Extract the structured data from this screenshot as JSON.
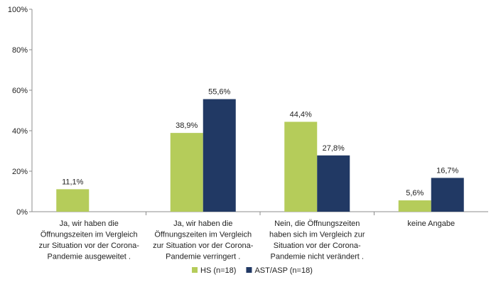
{
  "chart_data": {
    "type": "bar",
    "categories": [
      [
        "Ja, wir haben die",
        "Öffnungszeiten im Vergleich",
        "zur Situation vor der Corona-",
        "Pandemie  ausgeweitet ."
      ],
      [
        "Ja, wir haben die",
        "Öffnungszeiten im Vergleich",
        "zur Situation vor der Corona-",
        "Pandemie  verringert ."
      ],
      [
        "Nein, die Öffnungszeiten",
        "haben sich im Vergleich zur",
        "Situation vor der Corona-",
        "Pandemie  nicht verändert ."
      ],
      [
        "keine Angabe"
      ]
    ],
    "series": [
      {
        "name": "HS (n=18)",
        "values": [
          11.1,
          38.9,
          44.4,
          5.6
        ],
        "labels": [
          "11,1%",
          "38,9%",
          "44,4%",
          "5,6%"
        ],
        "color": "#b5cc5a"
      },
      {
        "name": "AST/ASP (n=18)",
        "values": [
          null,
          55.6,
          27.8,
          16.7
        ],
        "labels": [
          "",
          "55,6%",
          "27,8%",
          "16,7%"
        ],
        "color": "#213964"
      }
    ],
    "y_ticks": [
      "0%",
      "20%",
      "40%",
      "60%",
      "80%",
      "100%"
    ],
    "ylim": [
      0,
      100
    ],
    "grid": false,
    "legend": "bottom-center",
    "title": "",
    "xlabel": "",
    "ylabel": ""
  }
}
